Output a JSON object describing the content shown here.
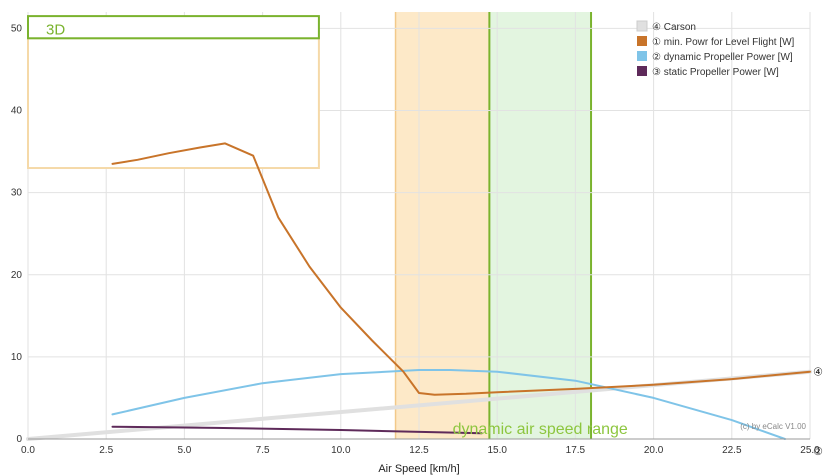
{
  "chart_data": {
    "type": "line",
    "xlabel": "Air Speed [km/h]",
    "ylabel": "",
    "xlim": [
      0,
      25
    ],
    "ylim": [
      0,
      52
    ],
    "xticks": [
      "0.0",
      "2.5",
      "5.0",
      "7.5",
      "10.0",
      "12.5",
      "15.0",
      "17.5",
      "20.0",
      "22.5",
      "25.0"
    ],
    "xtick_values": [
      0,
      2.5,
      5,
      7.5,
      10,
      12.5,
      15,
      17.5,
      20,
      22.5,
      25
    ],
    "yticks": [
      "0",
      "10",
      "20",
      "30",
      "40",
      "50"
    ],
    "ytick_values": [
      0,
      10,
      20,
      30,
      40,
      50
    ],
    "grid": true,
    "legend_position": "top-right",
    "series": [
      {
        "name": "④ Carson",
        "color": "#e0e0e0",
        "x": [
          0,
          25
        ],
        "y": [
          0,
          8.2
        ]
      },
      {
        "name": "① min. Powr for Level Flight [W]",
        "color": "#c8742a",
        "x": [
          2.7,
          3.5,
          4.5,
          5.5,
          6.3,
          7.2,
          8.0,
          9.0,
          10.0,
          11.0,
          12.0,
          12.5,
          13.0,
          14.0,
          15.0,
          17.5,
          20.0,
          22.5,
          25.0
        ],
        "y": [
          33.5,
          34.0,
          34.8,
          35.5,
          36.0,
          34.5,
          27.0,
          21.0,
          16.0,
          12.0,
          8.2,
          5.6,
          5.4,
          5.5,
          5.7,
          6.1,
          6.6,
          7.3,
          8.2
        ]
      },
      {
        "name": "② dynamic Propeller Power [W]",
        "color": "#7fc4e8",
        "x": [
          2.7,
          5,
          7.5,
          10,
          12.5,
          13.5,
          15,
          17.5,
          20,
          22.5,
          24.2
        ],
        "y": [
          3.0,
          5.0,
          6.8,
          7.9,
          8.4,
          8.4,
          8.2,
          7.1,
          5.0,
          2.3,
          0
        ]
      },
      {
        "name": "③ static Propeller Power [W]",
        "color": "#5e2a5a",
        "x": [
          2.7,
          6,
          10,
          14.5
        ],
        "y": [
          1.5,
          1.35,
          1.1,
          0.7
        ]
      }
    ],
    "bands": [
      {
        "name": "orange-band",
        "x_start": 11.75,
        "x_end": 14.75,
        "color": "#fde9c8"
      },
      {
        "name": "green-band",
        "x_start": 14.75,
        "x_end": 18.0,
        "color": "#e3f5e0",
        "label": "dynamic air speed range"
      }
    ],
    "inset": {
      "title": "3D",
      "x_start": 0,
      "x_end": 9.3,
      "y_top": 51.5,
      "y_header_bottom": 48.8,
      "y_bottom": 33.0
    },
    "credit": "(c) by eCalc  V1.00",
    "edge_marks": [
      "④",
      "②"
    ]
  }
}
